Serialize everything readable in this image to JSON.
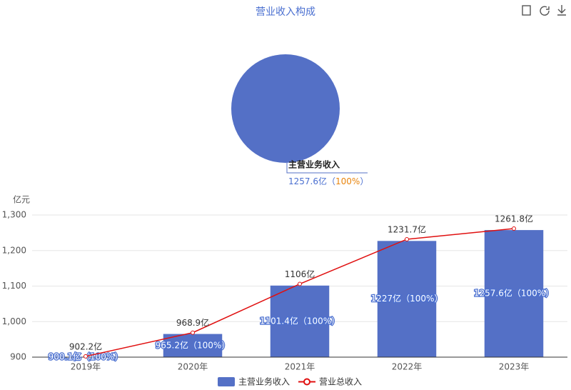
{
  "chart_data": [
    {
      "type": "pie",
      "title": "营业收入构成",
      "categories": [
        "主营业务收入"
      ],
      "values": [
        1257.6
      ],
      "value_labels": [
        "1257.6亿（100%）"
      ],
      "colors": [
        "#5470c6"
      ]
    },
    {
      "type": "bar-line",
      "y_axis_label": "亿元",
      "categories": [
        "2019年",
        "2020年",
        "2021年",
        "2022年",
        "2023年"
      ],
      "ylim": [
        900,
        1300
      ],
      "yticks": [
        900,
        {
          "value": 1000,
          "label": "1,000"
        },
        {
          "value": 1100,
          "label": "1,100"
        },
        {
          "value": 1200,
          "label": "1,200"
        },
        {
          "value": 1300,
          "label": "1,300"
        }
      ],
      "grid": true,
      "series": [
        {
          "name": "主营业务收入",
          "kind": "bar",
          "color": "#5470c6",
          "values": [
            900.1,
            965.2,
            1101.4,
            1227,
            1257.6
          ],
          "value_labels": [
            "900.1亿（100%）",
            "965.2亿（100%）",
            "1101.4亿（100%）",
            "1227亿（100%）",
            "1257.6亿（100%）"
          ]
        },
        {
          "name": "营业总收入",
          "kind": "line",
          "color": "#e01010",
          "values": [
            902.2,
            968.9,
            1106,
            1231.7,
            1261.8
          ],
          "value_labels": [
            "902.2亿",
            "968.9亿",
            "1106亿",
            "1231.7亿",
            "1261.8亿"
          ]
        }
      ]
    }
  ]
}
